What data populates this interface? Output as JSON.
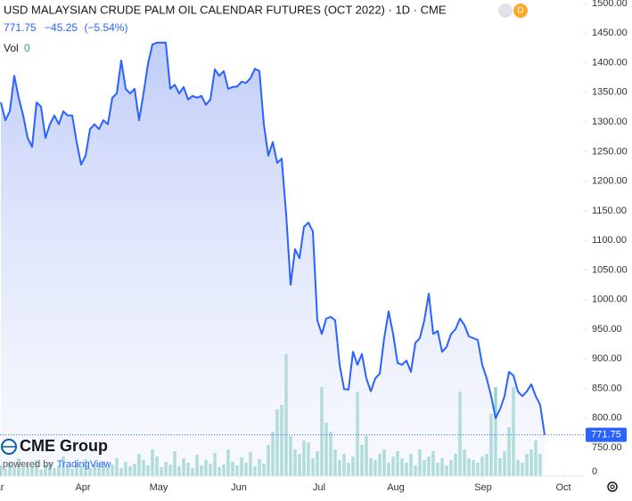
{
  "chart_data": {
    "type": "area",
    "title": "USD MALAYSIAN CRUDE PALM OIL CALENDAR FUTURES (OCT 2022) · 1D · CME",
    "change": "−45.25",
    "change_percent": "(−5.54%)",
    "badge": "D",
    "brand": "CME Group",
    "powered_by": "powered by",
    "platform": "TradingView",
    "color": "#2962ff",
    "values": [
      1333,
      1303,
      1318,
      1378,
      1341,
      1311,
      1273,
      1258,
      1333,
      1326,
      1273,
      1296,
      1311,
      1296,
      1318,
      1311,
      1311,
      1266,
      1228,
      1243,
      1288,
      1296,
      1288,
      1303,
      1296,
      1341,
      1348,
      1404,
      1356,
      1348,
      1356,
      1303,
      1348,
      1398,
      1431,
      1434,
      1434,
      1434,
      1356,
      1363,
      1348,
      1359,
      1338,
      1344,
      1341,
      1344,
      1329,
      1338,
      1389,
      1378,
      1386,
      1356,
      1359,
      1360,
      1368,
      1366,
      1374,
      1390,
      1386,
      1296,
      1243,
      1266,
      1231,
      1238,
      1145,
      1025,
      1085,
      1070,
      1123,
      1130,
      1115,
      965,
      942,
      968,
      971,
      965,
      890,
      849,
      848,
      912,
      890,
      908,
      867,
      845,
      867,
      875,
      935,
      980,
      942,
      893,
      890,
      897,
      878,
      927,
      935,
      965,
      1010,
      942,
      947,
      912,
      920,
      942,
      950,
      968,
      957,
      938,
      935,
      932,
      890,
      867,
      837,
      800,
      815,
      837,
      878,
      872,
      845,
      837,
      845,
      857,
      837,
      822,
      771.75
    ],
    "xlim": [
      -0.2,
      130.8
    ],
    "xticks": [
      {
        "value": -1.2,
        "label": "Mar"
      },
      {
        "value": 18.4,
        "label": "Apr"
      },
      {
        "value": 35.4,
        "label": "May"
      },
      {
        "value": 53.4,
        "label": "Jun"
      },
      {
        "value": 71.4,
        "label": "Jul"
      },
      {
        "value": 88.6,
        "label": "Aug"
      },
      {
        "value": 108.2,
        "label": "Sep"
      },
      {
        "value": 126.2,
        "label": "Oct"
      }
    ],
    "ylim": [
      702,
      1506
    ],
    "yticks": [
      {
        "value": 750,
        "label": "750.00"
      },
      {
        "value": 800,
        "label": "800.00"
      },
      {
        "value": 850,
        "label": "850.00"
      },
      {
        "value": 900,
        "label": "900.00"
      },
      {
        "value": 950,
        "label": "950.00"
      },
      {
        "value": 1000,
        "label": "1000.00"
      },
      {
        "value": 1050,
        "label": "1050.00"
      },
      {
        "value": 1100,
        "label": "1100.00"
      },
      {
        "value": 1150,
        "label": "1150.00"
      },
      {
        "value": 1200,
        "label": "1200.00"
      },
      {
        "value": 1250,
        "label": "1250.00"
      },
      {
        "value": 1300,
        "label": "1300.00"
      },
      {
        "value": 1350,
        "label": "1350.00"
      },
      {
        "value": 1400,
        "label": "1400.00"
      },
      {
        "value": 1450,
        "label": "1450.00"
      },
      {
        "value": 1500,
        "label": "1500.00"
      }
    ],
    "volume": {
      "name": "Vol",
      "color": "#7ccbbd",
      "ylim": [
        0,
        535
      ],
      "yticks": [
        0
      ],
      "values": [
        12,
        8,
        15,
        10,
        20,
        9,
        14,
        11,
        18,
        7,
        13,
        16,
        9,
        12,
        22,
        10,
        8,
        15,
        11,
        19,
        9,
        14,
        12,
        17,
        10,
        13,
        20,
        9,
        16,
        11,
        14,
        25,
        18,
        12,
        30,
        22,
        10,
        16,
        13,
        28,
        11,
        20,
        15,
        9,
        24,
        12,
        18,
        14,
        26,
        10,
        13,
        30,
        16,
        12,
        21,
        15,
        27,
        11,
        19,
        14,
        35,
        50,
        75,
        80,
        137,
        45,
        30,
        25,
        40,
        38,
        20,
        28,
        100,
        60,
        50,
        30,
        18,
        25,
        15,
        22,
        95,
        35,
        45,
        20,
        18,
        25,
        30,
        15,
        22,
        28,
        20,
        15,
        25,
        12,
        30,
        18,
        22,
        28,
        15,
        20,
        12,
        18,
        25,
        95,
        30,
        20,
        18,
        15,
        22,
        25,
        70,
        100,
        20,
        28,
        55,
        100,
        18,
        15,
        25,
        30,
        40,
        25,
        0
      ]
    }
  }
}
